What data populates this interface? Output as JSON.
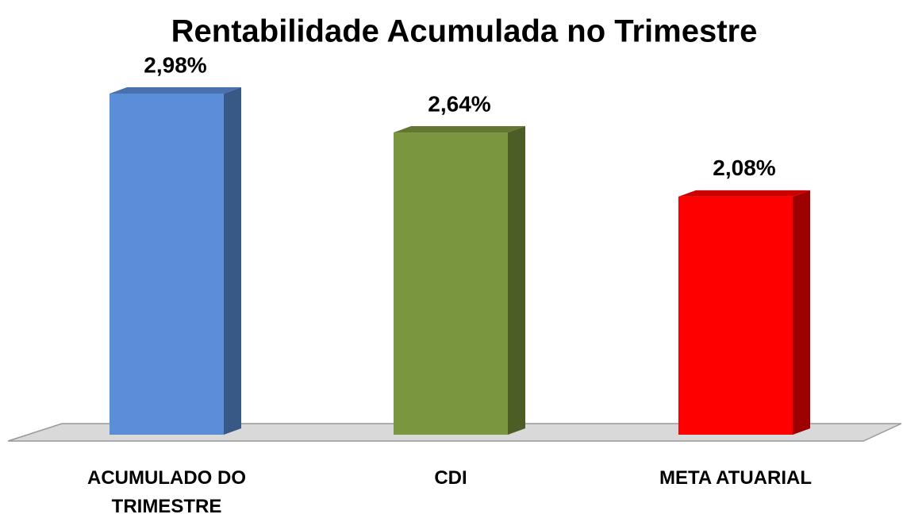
{
  "chart_data": {
    "type": "bar3d",
    "title": "Rentabilidade Acumulada no Trimestre",
    "categories": [
      "ACUMULADO DO TRIMESTRE",
      "CDI",
      "META ATUARIAL"
    ],
    "values": [
      2.98,
      2.64,
      2.08
    ],
    "value_labels": [
      "2,98%",
      "2,64%",
      "2,08%"
    ],
    "colors": [
      "#5b8ed8",
      "#7a963e",
      "#ff0000"
    ]
  }
}
